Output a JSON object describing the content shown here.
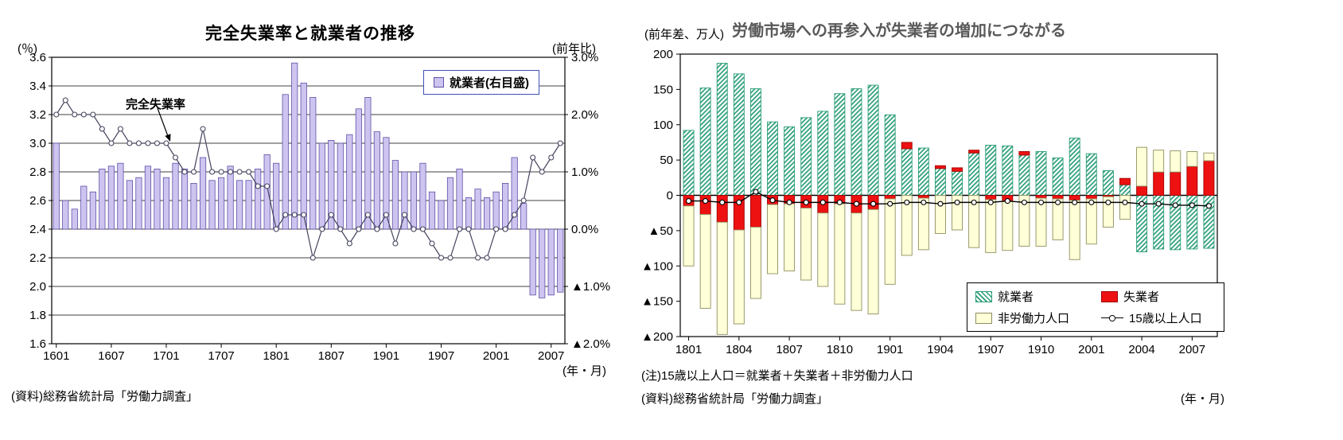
{
  "chart_data": [
    {
      "id": "unemployment-rate-and-employment",
      "type": "bar+line",
      "title": "完全失業率と就業者の推移",
      "left_axis_unit": "(％)",
      "right_axis_unit": "(前年比)",
      "x_axis_unit": "(年・月)",
      "source": "(資料)総務省統計局「労働力調査」",
      "legend_label": "就業者(右目盛)",
      "line_annotation": "完全失業率",
      "x": [
        "1601",
        "1602",
        "1603",
        "1604",
        "1605",
        "1606",
        "1607",
        "1608",
        "1609",
        "1610",
        "1611",
        "1612",
        "1701",
        "1702",
        "1703",
        "1704",
        "1705",
        "1706",
        "1707",
        "1708",
        "1709",
        "1710",
        "1711",
        "1712",
        "1801",
        "1802",
        "1803",
        "1804",
        "1805",
        "1806",
        "1807",
        "1808",
        "1809",
        "1810",
        "1811",
        "1812",
        "1901",
        "1902",
        "1903",
        "1904",
        "1905",
        "1906",
        "1907",
        "1908",
        "1909",
        "1910",
        "1911",
        "1912",
        "2001",
        "2002",
        "2003",
        "2004",
        "2005",
        "2006",
        "2007",
        "2008"
      ],
      "x_tick_labels": [
        "1601",
        "1607",
        "1701",
        "1707",
        "1801",
        "1807",
        "1901",
        "1907",
        "2001",
        "2007"
      ],
      "x_tick_indices": [
        0,
        6,
        12,
        18,
        24,
        30,
        36,
        42,
        48,
        54
      ],
      "left_axis": {
        "min": 1.6,
        "max": 3.6,
        "tick_labels": [
          "3.6",
          "3.4",
          "3.2",
          "3.0",
          "2.8",
          "2.6",
          "2.4",
          "2.2",
          "2.0",
          "1.8",
          "1.6"
        ]
      },
      "right_axis": {
        "min": -2.0,
        "max": 3.0,
        "tick_labels": [
          "3.0%",
          "2.0%",
          "1.0%",
          "0.0%",
          "▲1.0%",
          "▲2.0%"
        ],
        "tick_values": [
          3,
          2,
          1,
          0,
          -1,
          -2
        ]
      },
      "series": [
        {
          "name": "就業者(右目盛)",
          "type": "bar",
          "axis": "right",
          "unit": "%(前年比)",
          "values": [
            1.5,
            0.5,
            0.35,
            0.75,
            0.65,
            1.05,
            1.1,
            1.15,
            0.85,
            0.9,
            1.1,
            1.05,
            0.9,
            1.15,
            1.05,
            0.8,
            1.25,
            0.85,
            0.9,
            1.1,
            0.85,
            0.85,
            1.05,
            1.3,
            1.15,
            2.35,
            2.9,
            2.55,
            2.3,
            1.5,
            1.55,
            1.5,
            1.65,
            2.1,
            2.3,
            1.7,
            1.6,
            1.2,
            1.0,
            1.0,
            1.15,
            0.65,
            0.5,
            0.9,
            1.05,
            0.55,
            0.7,
            0.55,
            0.65,
            0.8,
            1.25,
            0.45,
            -1.15,
            -1.2,
            -1.15,
            -1.1
          ]
        },
        {
          "name": "完全失業率",
          "type": "line",
          "axis": "left",
          "unit": "%",
          "values": [
            3.2,
            3.3,
            3.2,
            3.2,
            3.2,
            3.1,
            3.0,
            3.1,
            3.0,
            3.0,
            3.0,
            3.0,
            3.0,
            2.9,
            2.8,
            2.8,
            3.1,
            2.8,
            2.8,
            2.8,
            2.8,
            2.8,
            2.7,
            2.7,
            2.4,
            2.5,
            2.5,
            2.5,
            2.2,
            2.4,
            2.5,
            2.4,
            2.3,
            2.4,
            2.5,
            2.4,
            2.5,
            2.3,
            2.5,
            2.4,
            2.4,
            2.3,
            2.2,
            2.2,
            2.4,
            2.4,
            2.2,
            2.2,
            2.4,
            2.4,
            2.5,
            2.6,
            2.9,
            2.8,
            2.9,
            3.0
          ]
        }
      ],
      "colors": {
        "bar_fill": "#cec4f0",
        "bar_stroke": "#5f51a6",
        "line": "#44445e",
        "grid": "#000000"
      }
    },
    {
      "id": "labor-market-reentry",
      "type": "stacked_bar+line",
      "title": "労働市場への再参入が失業者の増加につながる",
      "y_axis_unit": "(前年差、万人)",
      "x_axis_unit": "(年・月)",
      "note": "(注)15歳以上人口＝就業者＋失業者＋非労働力人口",
      "source": "(資料)総務省統計局「労働力調査」",
      "x": [
        "1801",
        "1802",
        "1803",
        "1804",
        "1805",
        "1806",
        "1807",
        "1808",
        "1809",
        "1810",
        "1811",
        "1812",
        "1901",
        "1902",
        "1903",
        "1904",
        "1905",
        "1906",
        "1907",
        "1908",
        "1909",
        "1910",
        "1911",
        "1912",
        "2001",
        "2002",
        "2003",
        "2004",
        "2005",
        "2006",
        "2007",
        "2008"
      ],
      "x_tick_labels": [
        "1801",
        "1804",
        "1807",
        "1810",
        "1901",
        "1904",
        "1907",
        "1910",
        "2001",
        "2004",
        "2007"
      ],
      "x_tick_indices": [
        0,
        3,
        6,
        9,
        12,
        15,
        18,
        21,
        24,
        27,
        30
      ],
      "y_axis": {
        "min": -200,
        "max": 200,
        "tick_labels": [
          "200",
          "150",
          "100",
          "50",
          "0",
          "▲50",
          "▲100",
          "▲150",
          "▲200"
        ],
        "tick_values": [
          200,
          150,
          100,
          50,
          0,
          -50,
          -100,
          -150,
          -200
        ]
      },
      "series": [
        {
          "name": "就業者",
          "type": "bar",
          "unit": "万人(前年差)",
          "values": [
            92,
            152,
            187,
            172,
            151,
            104,
            97,
            110,
            119,
            144,
            151,
            156,
            114,
            66,
            67,
            38,
            34,
            60,
            71,
            70,
            57,
            62,
            53,
            81,
            59,
            35,
            15,
            -80,
            -76,
            -77,
            -76,
            -75
          ]
        },
        {
          "name": "失業者",
          "type": "bar",
          "unit": "万人(前年差)",
          "values": [
            -15,
            -27,
            -38,
            -49,
            -45,
            -13,
            -12,
            -18,
            -25,
            -12,
            -25,
            -20,
            -5,
            9,
            -4,
            4,
            5,
            4,
            -6,
            -8,
            5,
            -4,
            -5,
            -7,
            -5,
            -2,
            9,
            13,
            33,
            33,
            41,
            49
          ]
        },
        {
          "name": "非労働力人口",
          "type": "bar",
          "unit": "万人(前年差)",
          "values": [
            -85,
            -133,
            -159,
            -133,
            -101,
            -98,
            -95,
            -102,
            -104,
            -142,
            -138,
            -148,
            -121,
            -85,
            -73,
            -54,
            -49,
            -74,
            -75,
            -70,
            -72,
            -68,
            -58,
            -84,
            -64,
            -43,
            -34,
            55,
            31,
            30,
            21,
            11
          ]
        },
        {
          "name": "15歳以上人口",
          "type": "line",
          "unit": "万人(前年差)",
          "values": [
            -8,
            -8,
            -10,
            -10,
            5,
            -7,
            -10,
            -10,
            -10,
            -10,
            -12,
            -12,
            -12,
            -10,
            -10,
            -12,
            -10,
            -10,
            -10,
            -8,
            -10,
            -10,
            -10,
            -10,
            -10,
            -10,
            -10,
            -12,
            -12,
            -14,
            -14,
            -15
          ]
        }
      ],
      "colors": {
        "employed_hatch": "#2a9d78",
        "unemployed_fill": "#ee1111",
        "unemployed_stroke": "#a00000",
        "nilf_fill": "#ffffd8",
        "nilf_stroke": "#8f8f60",
        "line": "#000000"
      }
    }
  ]
}
